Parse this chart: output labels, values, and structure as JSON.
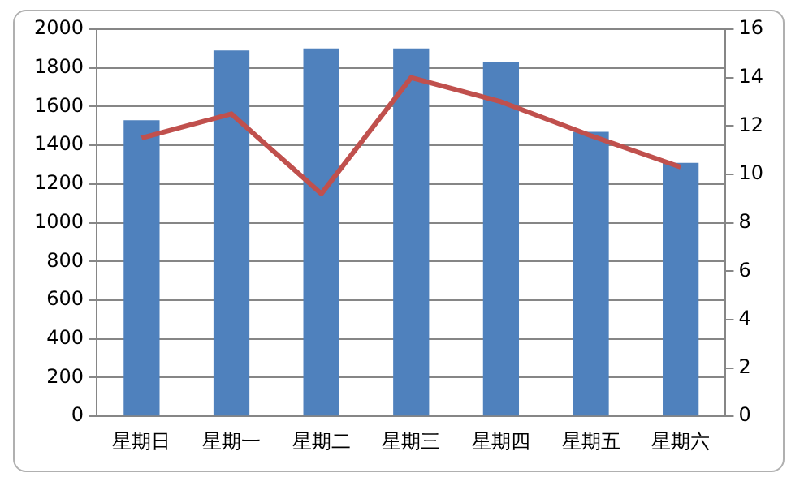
{
  "chart_data": {
    "type": "bar",
    "categories": [
      "星期日",
      "星期一",
      "星期二",
      "星期三",
      "星期四",
      "星期五",
      "星期六"
    ],
    "series": [
      {
        "color": "#4f81bd",
        "values": [
          1530,
          1890,
          1900,
          1900,
          1830,
          1470,
          1310
        ]
      },
      {
        "type": "line",
        "axis": "y2",
        "color": "#c0504d",
        "values": [
          11.5,
          12.5,
          9.2,
          14.0,
          13.0,
          11.6,
          10.3
        ]
      }
    ],
    "ylim": [
      0,
      2000
    ],
    "yticks": [
      0,
      200,
      400,
      600,
      800,
      1000,
      1200,
      1400,
      1600,
      1800,
      2000
    ],
    "y2lim": [
      0,
      16
    ],
    "y2ticks": [
      0,
      2,
      4,
      6,
      8,
      10,
      12,
      14,
      16
    ],
    "grid": "y",
    "legend": false,
    "marker": "none",
    "line_style": "solid"
  }
}
